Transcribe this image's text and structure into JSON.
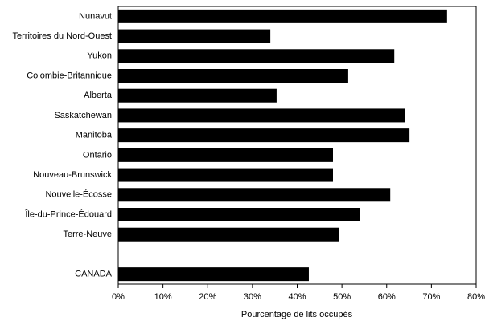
{
  "chart_data": {
    "type": "hbar",
    "xlabel": "Pourcentage de lits occupés",
    "color": "#000000",
    "categories": [
      "Nunavut",
      "Territoires du Nord-Ouest",
      "Yukon",
      "Colombie-Britannique",
      "Alberta",
      "Saskatchewan",
      "Manitoba",
      "Ontario",
      "Nouveau-Brunswick",
      "Nouvelle-Écosse",
      "Île-du-Prince-Édouard",
      "Terre-Neuve",
      null,
      "CANADA"
    ],
    "values": [
      73.5,
      34,
      61.7,
      51.4,
      35.4,
      64,
      65.1,
      48,
      48,
      60.8,
      54.1,
      49.3,
      null,
      42.6
    ],
    "xlim": [
      0,
      80
    ],
    "xticks": [
      {
        "value": 0,
        "label": "0%"
      },
      {
        "value": 10,
        "label": "10%"
      },
      {
        "value": 20,
        "label": "20%"
      },
      {
        "value": 30,
        "label": "30%"
      },
      {
        "value": 40,
        "label": "40%"
      },
      {
        "value": 50,
        "label": "50%"
      },
      {
        "value": 60,
        "label": "60%"
      },
      {
        "value": 70,
        "label": "70%"
      },
      {
        "value": 80,
        "label": "80%"
      }
    ],
    "grid": false
  }
}
